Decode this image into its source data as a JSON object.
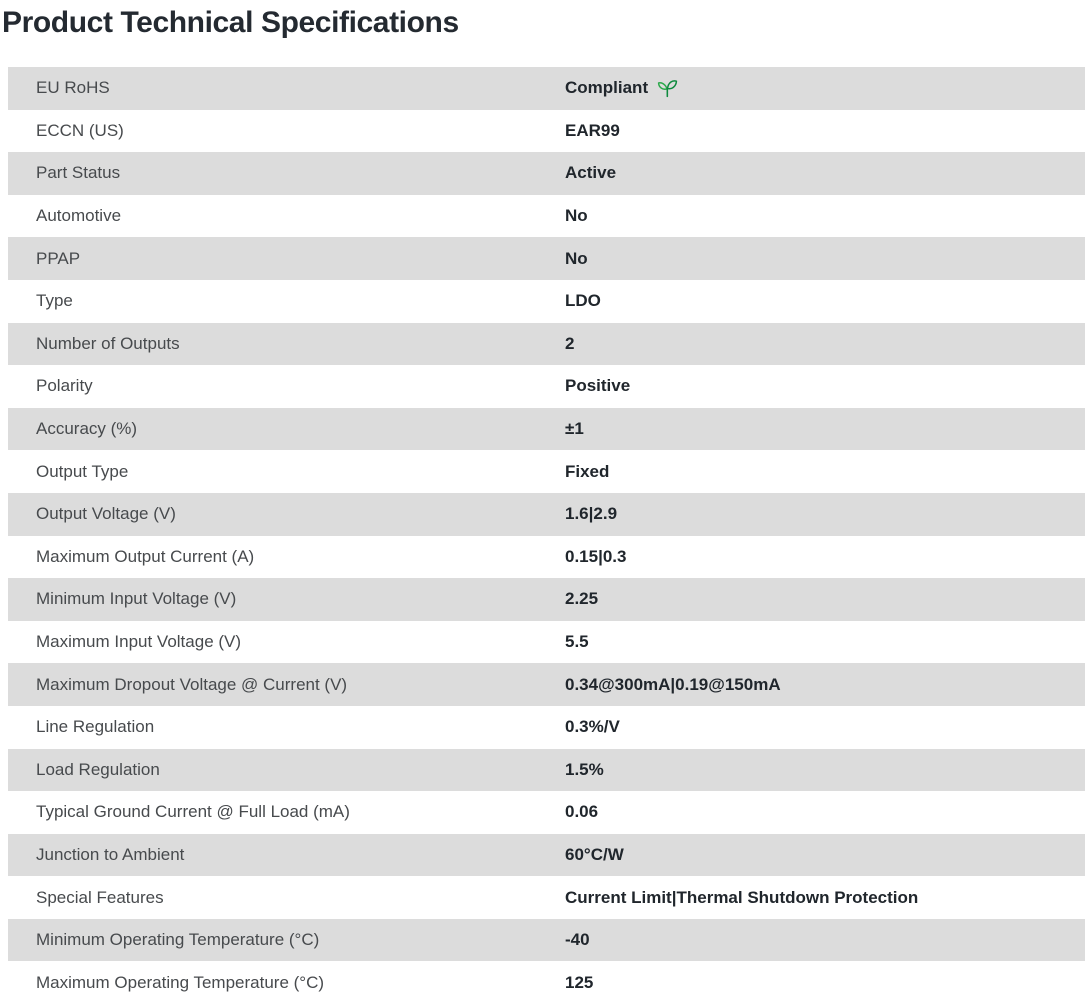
{
  "page": {
    "title": "Product Technical Specifications"
  },
  "colors": {
    "row_alt_background": "#dcdcdc",
    "title_text": "#242a31",
    "label_text": "#474a4d",
    "value_text": "#20262c",
    "leaf_green_light": "#2ba84a",
    "leaf_green_dark": "#0e8a3e"
  },
  "table": {
    "rows": [
      {
        "label": "EU RoHS",
        "value": "Compliant",
        "icon": "leaf-icon"
      },
      {
        "label": "ECCN (US)",
        "value": "EAR99"
      },
      {
        "label": "Part Status",
        "value": "Active"
      },
      {
        "label": "Automotive",
        "value": "No"
      },
      {
        "label": "PPAP",
        "value": "No"
      },
      {
        "label": "Type",
        "value": "LDO"
      },
      {
        "label": "Number of Outputs",
        "value": "2"
      },
      {
        "label": "Polarity",
        "value": "Positive"
      },
      {
        "label": "Accuracy (%)",
        "value": "±1"
      },
      {
        "label": "Output Type",
        "value": "Fixed"
      },
      {
        "label": "Output Voltage (V)",
        "value": "1.6|2.9"
      },
      {
        "label": "Maximum Output Current (A)",
        "value": "0.15|0.3"
      },
      {
        "label": "Minimum Input Voltage (V)",
        "value": "2.25"
      },
      {
        "label": "Maximum Input Voltage (V)",
        "value": "5.5"
      },
      {
        "label": "Maximum Dropout Voltage @ Current (V)",
        "value": "0.34@300mA|0.19@150mA"
      },
      {
        "label": "Line Regulation",
        "value": "0.3%/V"
      },
      {
        "label": "Load Regulation",
        "value": "1.5%"
      },
      {
        "label": "Typical Ground Current @ Full Load (mA)",
        "value": "0.06"
      },
      {
        "label": "Junction to Ambient",
        "value": "60°C/W"
      },
      {
        "label": "Special Features",
        "value": "Current Limit|Thermal Shutdown Protection"
      },
      {
        "label": "Minimum Operating Temperature (°C)",
        "value": "-40"
      },
      {
        "label": "Maximum Operating Temperature (°C)",
        "value": "125"
      }
    ]
  }
}
